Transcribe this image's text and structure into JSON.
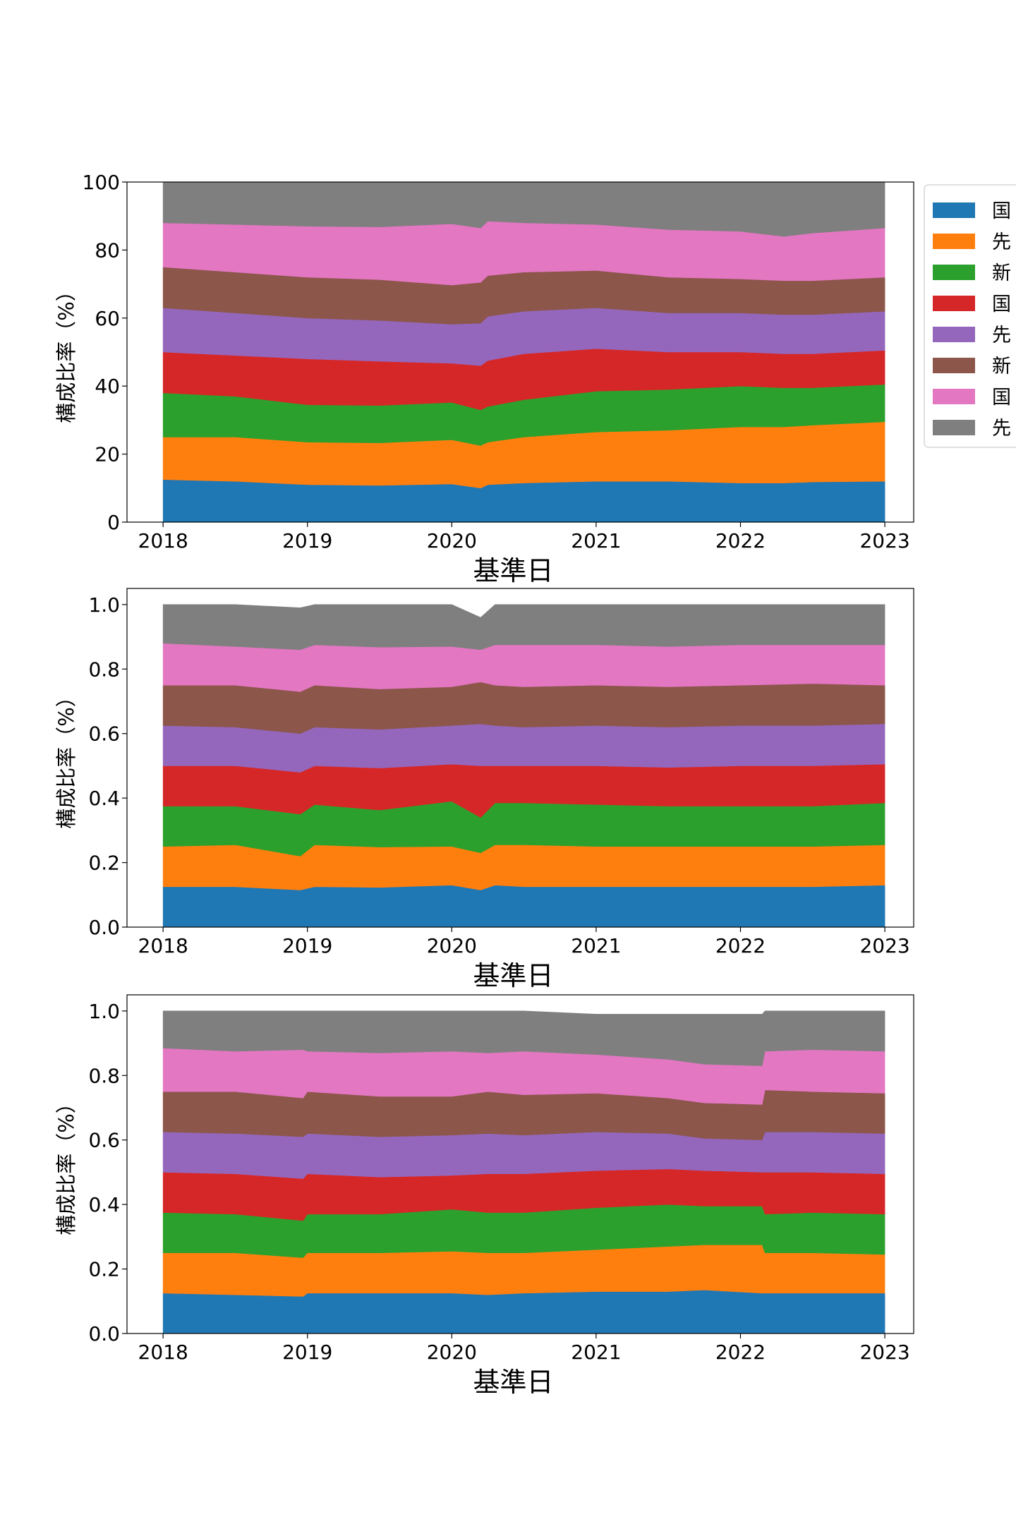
{
  "chart_data": [
    {
      "type": "area",
      "stacked": true,
      "xlabel": "基準日",
      "ylabel": "構成比率（%）",
      "ylim": [
        0,
        100
      ],
      "yticks": [
        "0",
        "20",
        "40",
        "60",
        "80",
        "100"
      ],
      "ytick_values": [
        0,
        20,
        40,
        60,
        80,
        100
      ],
      "xlim": [
        2017.75,
        2023.2
      ],
      "xticks": [
        "2018",
        "2019",
        "2020",
        "2021",
        "2022",
        "2023"
      ],
      "xtick_values": [
        2018,
        2019,
        2020,
        2021,
        2022,
        2023
      ],
      "x": [
        2018.0,
        2018.5,
        2019.0,
        2019.5,
        2020.0,
        2020.2,
        2020.25,
        2020.5,
        2021.0,
        2021.5,
        2022.0,
        2022.3,
        2022.5,
        2023.0
      ],
      "series": [
        {
          "name": "国",
          "color": "#1f77b4",
          "values": [
            12.5,
            12.0,
            11.0,
            10.8,
            11.2,
            10.0,
            11.0,
            11.5,
            12.0,
            12.0,
            11.5,
            11.5,
            11.8,
            12.0
          ]
        },
        {
          "name": "先",
          "color": "#ff7f0e",
          "values": [
            12.5,
            13.0,
            12.5,
            12.5,
            13.0,
            12.5,
            12.5,
            13.5,
            14.5,
            15.0,
            16.5,
            16.5,
            16.7,
            17.5
          ]
        },
        {
          "name": "新",
          "color": "#2ca02c",
          "values": [
            13.0,
            12.0,
            11.0,
            11.0,
            11.0,
            10.5,
            10.5,
            11.0,
            12.0,
            12.0,
            12.0,
            11.5,
            11.0,
            11.0
          ]
        },
        {
          "name": "国",
          "color": "#d62728",
          "values": [
            12.0,
            12.0,
            13.5,
            13.0,
            11.5,
            13.0,
            13.5,
            13.5,
            12.5,
            11.0,
            10.0,
            10.0,
            10.0,
            10.0
          ]
        },
        {
          "name": "先",
          "color": "#9467bd",
          "values": [
            13.0,
            12.5,
            12.0,
            12.0,
            11.5,
            12.5,
            13.0,
            12.5,
            12.0,
            11.5,
            11.5,
            11.5,
            11.5,
            11.5
          ]
        },
        {
          "name": "新",
          "color": "#8c564b",
          "values": [
            12.0,
            12.0,
            12.0,
            12.0,
            11.5,
            12.0,
            12.0,
            11.5,
            11.0,
            10.5,
            10.0,
            10.0,
            10.0,
            10.0
          ]
        },
        {
          "name": "国",
          "color": "#e377c2",
          "values": [
            13.0,
            14.0,
            15.0,
            15.5,
            18.0,
            16.0,
            16.0,
            14.5,
            13.5,
            14.0,
            14.0,
            13.0,
            14.0,
            14.5
          ]
        },
        {
          "name": "先",
          "color": "#7f7f7f",
          "values": [
            12.0,
            12.5,
            13.0,
            13.2,
            12.3,
            13.5,
            11.5,
            12.0,
            12.5,
            14.0,
            14.5,
            16.0,
            15.0,
            13.5
          ]
        }
      ]
    },
    {
      "type": "area",
      "stacked": true,
      "xlabel": "基準日",
      "ylabel": "構成比率（%）",
      "ylim": [
        0,
        1.05
      ],
      "yticks": [
        "0.0",
        "0.2",
        "0.4",
        "0.6",
        "0.8",
        "1.0"
      ],
      "ytick_values": [
        0,
        0.2,
        0.4,
        0.6,
        0.8,
        1.0
      ],
      "xlim": [
        2017.75,
        2023.2
      ],
      "xticks": [
        "2018",
        "2019",
        "2020",
        "2021",
        "2022",
        "2023"
      ],
      "xtick_values": [
        2018,
        2019,
        2020,
        2021,
        2022,
        2023
      ],
      "x": [
        2018.0,
        2018.5,
        2018.95,
        2019.05,
        2019.5,
        2020.0,
        2020.2,
        2020.3,
        2020.5,
        2021.0,
        2021.5,
        2022.0,
        2022.5,
        2023.0
      ],
      "series": [
        {
          "name": "国",
          "color": "#1f77b4",
          "values": [
            0.125,
            0.125,
            0.115,
            0.125,
            0.123,
            0.13,
            0.115,
            0.13,
            0.125,
            0.125,
            0.125,
            0.125,
            0.125,
            0.13
          ]
        },
        {
          "name": "先",
          "color": "#ff7f0e",
          "values": [
            0.125,
            0.13,
            0.105,
            0.13,
            0.125,
            0.12,
            0.115,
            0.125,
            0.13,
            0.125,
            0.125,
            0.125,
            0.125,
            0.125
          ]
        },
        {
          "name": "新",
          "color": "#2ca02c",
          "values": [
            0.125,
            0.12,
            0.13,
            0.125,
            0.115,
            0.14,
            0.11,
            0.13,
            0.13,
            0.13,
            0.125,
            0.125,
            0.125,
            0.13
          ]
        },
        {
          "name": "国",
          "color": "#d62728",
          "values": [
            0.125,
            0.125,
            0.13,
            0.12,
            0.13,
            0.115,
            0.16,
            0.115,
            0.115,
            0.12,
            0.12,
            0.125,
            0.125,
            0.12
          ]
        },
        {
          "name": "先",
          "color": "#9467bd",
          "values": [
            0.125,
            0.12,
            0.12,
            0.12,
            0.12,
            0.12,
            0.13,
            0.125,
            0.12,
            0.125,
            0.125,
            0.125,
            0.125,
            0.125
          ]
        },
        {
          "name": "新",
          "color": "#8c564b",
          "values": [
            0.125,
            0.13,
            0.13,
            0.13,
            0.125,
            0.12,
            0.13,
            0.125,
            0.125,
            0.125,
            0.125,
            0.125,
            0.13,
            0.12
          ]
        },
        {
          "name": "国",
          "color": "#e377c2",
          "values": [
            0.13,
            0.12,
            0.13,
            0.125,
            0.13,
            0.125,
            0.1,
            0.125,
            0.13,
            0.125,
            0.125,
            0.125,
            0.12,
            0.125
          ]
        },
        {
          "name": "先",
          "color": "#7f7f7f",
          "values": [
            0.12,
            0.13,
            0.13,
            0.125,
            0.132,
            0.13,
            0.1,
            0.125,
            0.125,
            0.125,
            0.13,
            0.125,
            0.125,
            0.125
          ]
        }
      ]
    },
    {
      "type": "area",
      "stacked": true,
      "xlabel": "基準日",
      "ylabel": "構成比率（%）",
      "ylim": [
        0,
        1.05
      ],
      "yticks": [
        "0.0",
        "0.2",
        "0.4",
        "0.6",
        "0.8",
        "1.0"
      ],
      "ytick_values": [
        0,
        0.2,
        0.4,
        0.6,
        0.8,
        1.0
      ],
      "xlim": [
        2017.75,
        2023.2
      ],
      "xticks": [
        "2018",
        "2019",
        "2020",
        "2021",
        "2022",
        "2023"
      ],
      "xtick_values": [
        2018,
        2019,
        2020,
        2021,
        2022,
        2023
      ],
      "x": [
        2018.0,
        2018.5,
        2018.97,
        2019.0,
        2019.5,
        2020.0,
        2020.25,
        2020.5,
        2021.0,
        2021.5,
        2021.75,
        2022.15,
        2022.17,
        2022.5,
        2023.0
      ],
      "series": [
        {
          "name": "国",
          "color": "#1f77b4",
          "values": [
            0.125,
            0.12,
            0.115,
            0.125,
            0.125,
            0.125,
            0.12,
            0.125,
            0.13,
            0.13,
            0.135,
            0.125,
            0.125,
            0.125,
            0.125
          ]
        },
        {
          "name": "先",
          "color": "#ff7f0e",
          "values": [
            0.125,
            0.13,
            0.12,
            0.125,
            0.125,
            0.13,
            0.13,
            0.125,
            0.13,
            0.14,
            0.14,
            0.15,
            0.125,
            0.125,
            0.12
          ]
        },
        {
          "name": "新",
          "color": "#2ca02c",
          "values": [
            0.125,
            0.12,
            0.115,
            0.12,
            0.12,
            0.13,
            0.125,
            0.125,
            0.13,
            0.13,
            0.12,
            0.12,
            0.12,
            0.125,
            0.125
          ]
        },
        {
          "name": "国",
          "color": "#d62728",
          "values": [
            0.125,
            0.125,
            0.13,
            0.125,
            0.115,
            0.105,
            0.12,
            0.12,
            0.115,
            0.11,
            0.11,
            0.105,
            0.13,
            0.125,
            0.125
          ]
        },
        {
          "name": "先",
          "color": "#9467bd",
          "values": [
            0.125,
            0.125,
            0.13,
            0.125,
            0.125,
            0.125,
            0.125,
            0.12,
            0.12,
            0.11,
            0.1,
            0.1,
            0.125,
            0.125,
            0.125
          ]
        },
        {
          "name": "新",
          "color": "#8c564b",
          "values": [
            0.125,
            0.13,
            0.12,
            0.13,
            0.125,
            0.12,
            0.13,
            0.125,
            0.12,
            0.11,
            0.11,
            0.11,
            0.13,
            0.125,
            0.125
          ]
        },
        {
          "name": "国",
          "color": "#e377c2",
          "values": [
            0.135,
            0.125,
            0.15,
            0.125,
            0.135,
            0.14,
            0.12,
            0.135,
            0.12,
            0.12,
            0.12,
            0.12,
            0.12,
            0.13,
            0.13
          ]
        },
        {
          "name": "先",
          "color": "#7f7f7f",
          "values": [
            0.115,
            0.125,
            0.12,
            0.125,
            0.13,
            0.125,
            0.13,
            0.125,
            0.125,
            0.14,
            0.155,
            0.16,
            0.125,
            0.12,
            0.125
          ]
        }
      ]
    }
  ],
  "legend": {
    "placement": "right of top chart (clipped)",
    "entries": [
      {
        "label": "国",
        "color": "#1f77b4"
      },
      {
        "label": "先",
        "color": "#ff7f0e"
      },
      {
        "label": "新",
        "color": "#2ca02c"
      },
      {
        "label": "国",
        "color": "#d62728"
      },
      {
        "label": "先",
        "color": "#9467bd"
      },
      {
        "label": "新",
        "color": "#8c564b"
      },
      {
        "label": "国",
        "color": "#e377c2"
      },
      {
        "label": "先",
        "color": "#7f7f7f"
      }
    ]
  }
}
